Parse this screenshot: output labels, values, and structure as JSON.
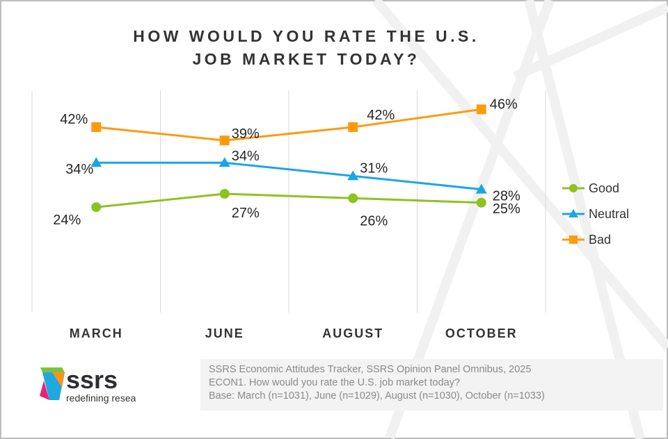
{
  "chart_data": {
    "type": "line",
    "title": "HOW WOULD YOU RATE THE U.S. JOB MARKET TODAY?",
    "title_lines": [
      "HOW WOULD YOU RATE THE U.S.",
      "JOB MARKET TODAY?"
    ],
    "categories": [
      "MARCH",
      "JUNE",
      "AUGUST",
      "OCTOBER"
    ],
    "series": [
      {
        "name": "Good",
        "values": [
          24,
          27,
          26,
          25
        ],
        "labels": [
          "24%",
          "27%",
          "26%",
          "25%"
        ],
        "color": "#8dc21f",
        "marker": "circle"
      },
      {
        "name": "Neutral",
        "values": [
          34,
          34,
          31,
          28
        ],
        "labels": [
          "34%",
          "34%",
          "31%",
          "28%"
        ],
        "color": "#1aa6e6",
        "marker": "triangle"
      },
      {
        "name": "Bad",
        "values": [
          42,
          39,
          42,
          46
        ],
        "labels": [
          "42%",
          "39%",
          "42%",
          "46%"
        ],
        "color": "#ff9a0e",
        "marker": "square"
      }
    ],
    "grid": "vertical",
    "legend": "right",
    "xlabel": "",
    "ylabel": ""
  },
  "footer": {
    "source": "SSRS Economic Attitudes Tracker, SSRS Opinion Panel Omnibus, 2025",
    "question": "ECON1. How would you rate the U.S. job market today?",
    "base": "Base: March (n=1031), June (n=1029), August (n=1030), October (n=1033)"
  },
  "logo": {
    "name": "ssrs",
    "tagline": "redefining research"
  }
}
